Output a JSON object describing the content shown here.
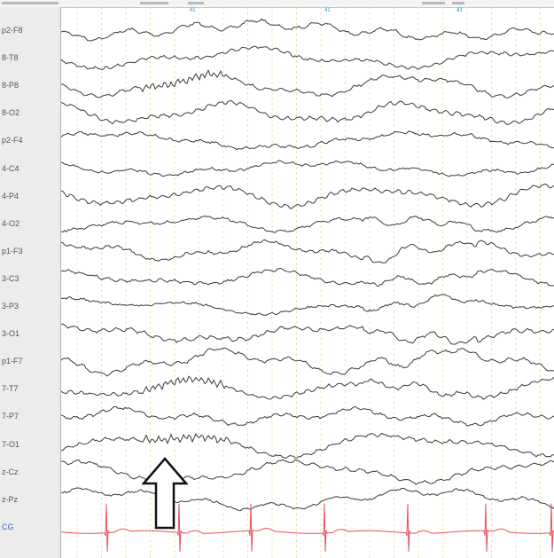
{
  "channels": [
    {
      "label": "p2-F8",
      "color": "#555555"
    },
    {
      "label": "8-T8",
      "color": "#555555"
    },
    {
      "label": "8-P8",
      "color": "#555555"
    },
    {
      "label": "8-O2",
      "color": "#555555"
    },
    {
      "label": "p2-F4",
      "color": "#555555"
    },
    {
      "label": "4-C4",
      "color": "#555555"
    },
    {
      "label": "4-P4",
      "color": "#555555"
    },
    {
      "label": "4-O2",
      "color": "#555555"
    },
    {
      "label": "p1-F3",
      "color": "#555555"
    },
    {
      "label": "3-C3",
      "color": "#555555"
    },
    {
      "label": "3-P3",
      "color": "#555555"
    },
    {
      "label": "3-O1",
      "color": "#555555"
    },
    {
      "label": "p1-F7",
      "color": "#555555"
    },
    {
      "label": "7-T7",
      "color": "#555555"
    },
    {
      "label": "7-P7",
      "color": "#555555"
    },
    {
      "label": "7-O1",
      "color": "#555555"
    },
    {
      "label": "z-Cz",
      "color": "#555555"
    },
    {
      "label": "z-Pz",
      "color": "#555555"
    },
    {
      "label": "CG",
      "color": "#3a5fc8"
    }
  ],
  "markers": [
    {
      "label": "41"
    },
    {
      "label": "41"
    },
    {
      "label": "41"
    }
  ],
  "colors": {
    "trace": "#3a3a3a",
    "ecg": "#e8505a",
    "grid": "#e8dfa0",
    "marker": "#1a8fc8"
  },
  "icons": {
    "annotation_arrow": "up-arrow-icon"
  }
}
